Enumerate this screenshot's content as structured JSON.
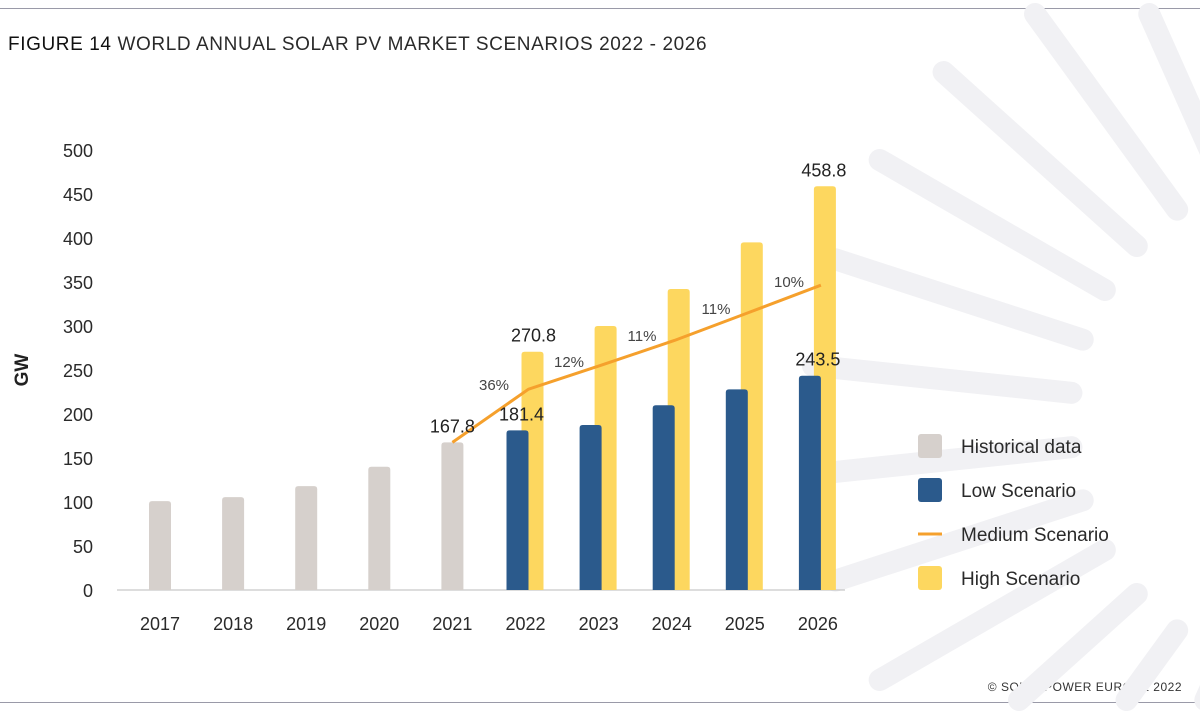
{
  "figure_label": "FIGURE 14",
  "figure_title": "WORLD ANNUAL SOLAR PV MARKET SCENARIOS 2022 - 2026",
  "copyright": "© SOLARPOWER EUROPE 2022",
  "colors": {
    "historical": "#d6d0cc",
    "low": "#2b5a8c",
    "medium": "#f5a02c",
    "high": "#fdd75f"
  },
  "chart_data": {
    "type": "bar",
    "title": "WORLD ANNUAL SOLAR PV MARKET SCENARIOS 2022 - 2026",
    "ylabel": "GW",
    "xlabel": "",
    "ylim": [
      0,
      500
    ],
    "yticks": [
      0,
      50,
      100,
      150,
      200,
      250,
      300,
      350,
      400,
      450,
      500
    ],
    "grid": false,
    "legend_position": "right",
    "categories": [
      "2017",
      "2018",
      "2019",
      "2020",
      "2021",
      "2022",
      "2023",
      "2024",
      "2025",
      "2026"
    ],
    "series": [
      {
        "name": "Historical data",
        "type": "bar",
        "values": [
          101,
          105.5,
          118,
          140,
          167.8,
          null,
          null,
          null,
          null,
          null
        ]
      },
      {
        "name": "Low Scenario",
        "type": "bar",
        "values": [
          null,
          null,
          null,
          null,
          null,
          181.4,
          187.5,
          210,
          228,
          243.5
        ]
      },
      {
        "name": "Medium Scenario",
        "type": "line",
        "values": [
          null,
          null,
          null,
          null,
          167.8,
          228.2,
          255.6,
          283.7,
          314.9,
          346.4
        ]
      },
      {
        "name": "High Scenario",
        "type": "bar",
        "values": [
          null,
          null,
          null,
          null,
          null,
          270.8,
          300,
          342,
          395,
          458.8
        ]
      }
    ],
    "data_labels": [
      {
        "category": "2021",
        "text": "167.8"
      },
      {
        "category": "2022",
        "text": "181.4"
      },
      {
        "category": "2022",
        "text": "270.8"
      },
      {
        "category": "2026",
        "text": "243.5"
      },
      {
        "category": "2026",
        "text": "458.8"
      }
    ],
    "growth_labels": [
      "36%",
      "12%",
      "11%",
      "11%",
      "10%"
    ]
  }
}
